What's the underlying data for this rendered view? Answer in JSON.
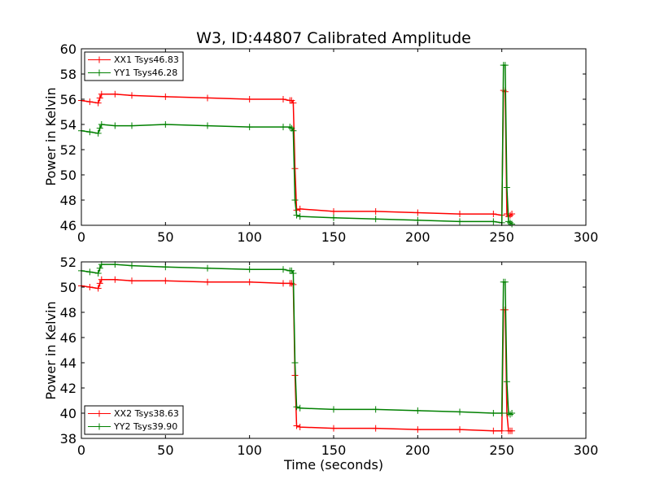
{
  "figure": {
    "title": "W3, ID:44807 Calibrated Amplitude",
    "xlabel": "Time (seconds)",
    "background": "#ffffff"
  },
  "chart_data": [
    {
      "type": "line",
      "title": "W3, ID:44807 Calibrated Amplitude",
      "xlabel": "",
      "ylabel": "Power in Kelvin",
      "xlim": [
        0,
        300
      ],
      "ylim": [
        46,
        60
      ],
      "xticks": [
        "0",
        "50",
        "100",
        "150",
        "200",
        "250",
        "300"
      ],
      "yticks": [
        "46",
        "48",
        "50",
        "52",
        "54",
        "56",
        "58",
        "60"
      ],
      "grid": false,
      "legend_position": "top-left",
      "marker": "plus",
      "series": [
        {
          "name": "XX1 Tsys46.83",
          "color": "#ff0000",
          "x": [
            0,
            5,
            10,
            11,
            12,
            20,
            30,
            50,
            75,
            100,
            120,
            124,
            125,
            126,
            127,
            128,
            130,
            150,
            175,
            200,
            225,
            245,
            250,
            251,
            252,
            253,
            254,
            255,
            256
          ],
          "y": [
            55.9,
            55.8,
            55.7,
            56.1,
            56.4,
            56.4,
            56.3,
            56.2,
            56.1,
            56.0,
            56.0,
            55.9,
            55.9,
            55.7,
            50.5,
            47.2,
            47.3,
            47.1,
            47.1,
            47.0,
            46.9,
            46.9,
            46.8,
            56.7,
            56.6,
            46.9,
            46.7,
            46.8,
            46.9
          ]
        },
        {
          "name": "YY1 Tsys46.28",
          "color": "#008000",
          "x": [
            0,
            5,
            10,
            11,
            12,
            20,
            30,
            50,
            75,
            100,
            120,
            124,
            125,
            126,
            127,
            128,
            130,
            150,
            175,
            200,
            225,
            245,
            250,
            251,
            252,
            253,
            254,
            255,
            256
          ],
          "y": [
            53.5,
            53.4,
            53.3,
            53.7,
            54.0,
            53.9,
            53.9,
            54.0,
            53.9,
            53.8,
            53.8,
            53.8,
            53.7,
            53.5,
            48.0,
            46.8,
            46.7,
            46.6,
            46.5,
            46.4,
            46.3,
            46.3,
            46.2,
            58.7,
            58.7,
            49.0,
            46.3,
            46.2,
            46.1
          ]
        }
      ]
    },
    {
      "type": "line",
      "title": "",
      "xlabel": "Time (seconds)",
      "ylabel": "Power in Kelvin",
      "xlim": [
        0,
        300
      ],
      "ylim": [
        38,
        52
      ],
      "xticks": [
        "0",
        "50",
        "100",
        "150",
        "200",
        "250",
        "300"
      ],
      "yticks": [
        "38",
        "40",
        "42",
        "44",
        "46",
        "48",
        "50",
        "52"
      ],
      "grid": false,
      "legend_position": "bottom-left",
      "marker": "plus",
      "series": [
        {
          "name": "XX2 Tsys38.63",
          "color": "#ff0000",
          "x": [
            0,
            5,
            10,
            11,
            12,
            20,
            30,
            50,
            75,
            100,
            120,
            124,
            125,
            126,
            127,
            128,
            130,
            150,
            175,
            200,
            225,
            245,
            250,
            251,
            252,
            253,
            254,
            255,
            256
          ],
          "y": [
            50.1,
            50.0,
            49.9,
            50.3,
            50.6,
            50.6,
            50.5,
            50.5,
            50.4,
            50.4,
            50.3,
            50.3,
            50.3,
            50.2,
            43.0,
            39.0,
            38.9,
            38.8,
            38.8,
            38.7,
            38.7,
            38.6,
            38.6,
            48.2,
            48.2,
            40.0,
            38.6,
            38.6,
            38.6
          ]
        },
        {
          "name": "YY2 Tsys39.90",
          "color": "#008000",
          "x": [
            0,
            5,
            10,
            11,
            12,
            20,
            30,
            50,
            75,
            100,
            120,
            124,
            125,
            126,
            127,
            128,
            130,
            150,
            175,
            200,
            225,
            245,
            250,
            251,
            252,
            253,
            254,
            255,
            256
          ],
          "y": [
            51.3,
            51.2,
            51.1,
            51.5,
            51.8,
            51.8,
            51.7,
            51.6,
            51.5,
            51.4,
            51.4,
            51.3,
            51.3,
            51.1,
            44.0,
            40.5,
            40.4,
            40.3,
            40.3,
            40.2,
            40.1,
            40.0,
            40.0,
            50.4,
            50.4,
            42.5,
            40.0,
            39.9,
            40.0
          ]
        }
      ]
    }
  ]
}
